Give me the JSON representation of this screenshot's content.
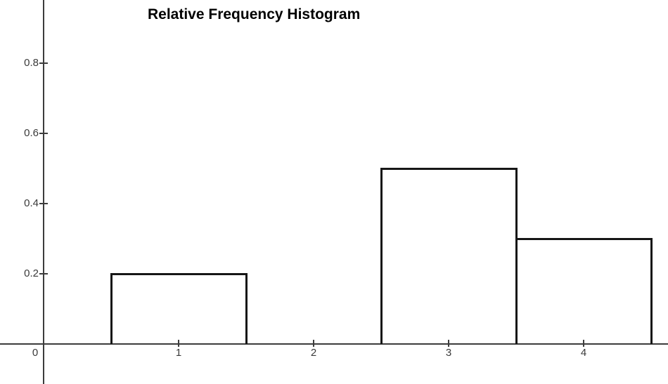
{
  "chart_data": {
    "type": "bar",
    "subtype": "relative-frequency-histogram",
    "title": "Relative Frequency Histogram",
    "xlabel": "",
    "ylabel": "",
    "grid": false,
    "legend": "none",
    "origin_label": "0",
    "x_ticks": [
      1,
      2,
      3,
      4
    ],
    "y_ticks": [
      0.2,
      0.4,
      0.6,
      0.8
    ],
    "x_tick_labels": [
      "1",
      "2",
      "3",
      "4"
    ],
    "y_tick_labels": [
      "0.2",
      "0.4",
      "0.6",
      "0.8"
    ],
    "xlim_visible": [
      -0.32,
      4.63
    ],
    "ylim_visible": [
      -0.11,
      0.98
    ],
    "bins": [
      {
        "x_start": 0.5,
        "x_end": 1.5,
        "relative_frequency": 0.2
      },
      {
        "x_start": 2.5,
        "x_end": 3.5,
        "relative_frequency": 0.5
      },
      {
        "x_start": 3.5,
        "x_end": 4.5,
        "relative_frequency": 0.3
      }
    ],
    "colors": {
      "background": "#ffffff",
      "axis": "#3c3c3c",
      "tick": "#3c3c3c",
      "tick_label": "#3a3a3a",
      "bar_border": "#161616",
      "bar_fill": "#ffffff",
      "title": "#000000"
    }
  }
}
